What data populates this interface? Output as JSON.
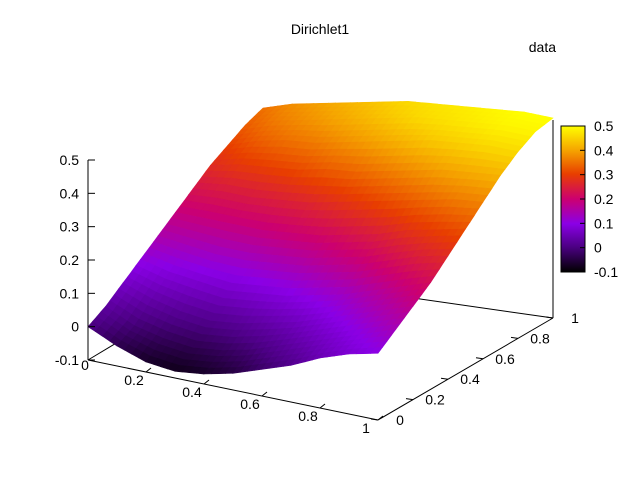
{
  "chart_data": {
    "type": "surface",
    "title": "Dirichlet1",
    "legend": {
      "entries": [
        "data"
      ],
      "placement": "top-right"
    },
    "xlabel": "",
    "ylabel": "",
    "zlabel": "",
    "xlim": [
      0,
      1
    ],
    "ylim": [
      0,
      1
    ],
    "zlim": [
      -0.1,
      0.5
    ],
    "x_ticks": [
      "0.2",
      "0.4",
      "0.6",
      "0.8",
      "1"
    ],
    "y_ticks": [
      "0",
      "0.2",
      "0.4",
      "0.6",
      "0.8",
      "1"
    ],
    "z_ticks": [
      "-0.1",
      "0",
      "0.1",
      "0.2",
      "0.3",
      "0.4",
      "0.5"
    ],
    "origin_tick": "0",
    "colorbar": {
      "range": [
        -0.1,
        0.5
      ],
      "ticks": [
        "-0.1",
        "0",
        "0.1",
        "0.2",
        "0.3",
        "0.4",
        "0.5"
      ],
      "palette": [
        "#000000",
        "#4b0082",
        "#8a00e6",
        "#cc0070",
        "#e83e00",
        "#f5a200",
        "#ffff00"
      ]
    },
    "surface": {
      "corners": {
        "x0_y0": 0.0,
        "x1_y0": 0.1,
        "x0_y1": 0.35,
        "x1_y1": 0.5
      },
      "x": [
        0,
        0.1,
        0.2,
        0.3,
        0.4,
        0.5,
        0.6,
        0.7,
        0.8,
        0.9,
        1.0
      ],
      "y": [
        0,
        0.1,
        0.2,
        0.3,
        0.4,
        0.5,
        0.6,
        0.7,
        0.8,
        0.9,
        1.0
      ],
      "z": [
        [
          0.0,
          -0.04,
          -0.07,
          -0.08,
          -0.07,
          -0.05,
          -0.02,
          0.01,
          0.05,
          0.08,
          0.1
        ],
        [
          0.03,
          -0.01,
          -0.03,
          -0.04,
          -0.03,
          -0.01,
          0.02,
          0.05,
          0.08,
          0.11,
          0.14
        ],
        [
          0.07,
          0.04,
          0.02,
          0.01,
          0.02,
          0.04,
          0.06,
          0.09,
          0.12,
          0.15,
          0.18
        ],
        [
          0.11,
          0.09,
          0.08,
          0.07,
          0.08,
          0.09,
          0.11,
          0.13,
          0.16,
          0.19,
          0.22
        ],
        [
          0.15,
          0.14,
          0.13,
          0.13,
          0.14,
          0.15,
          0.17,
          0.19,
          0.22,
          0.25,
          0.27
        ],
        [
          0.19,
          0.19,
          0.19,
          0.19,
          0.2,
          0.21,
          0.23,
          0.25,
          0.28,
          0.3,
          0.32
        ],
        [
          0.23,
          0.24,
          0.24,
          0.25,
          0.26,
          0.28,
          0.3,
          0.32,
          0.34,
          0.36,
          0.37
        ],
        [
          0.27,
          0.29,
          0.3,
          0.31,
          0.33,
          0.34,
          0.36,
          0.38,
          0.4,
          0.41,
          0.42
        ],
        [
          0.3,
          0.33,
          0.35,
          0.36,
          0.38,
          0.4,
          0.42,
          0.44,
          0.45,
          0.46,
          0.46
        ],
        [
          0.33,
          0.36,
          0.38,
          0.4,
          0.42,
          0.44,
          0.46,
          0.47,
          0.48,
          0.49,
          0.49
        ],
        [
          0.35,
          0.38,
          0.4,
          0.42,
          0.44,
          0.46,
          0.47,
          0.48,
          0.49,
          0.5,
          0.5
        ]
      ]
    }
  }
}
